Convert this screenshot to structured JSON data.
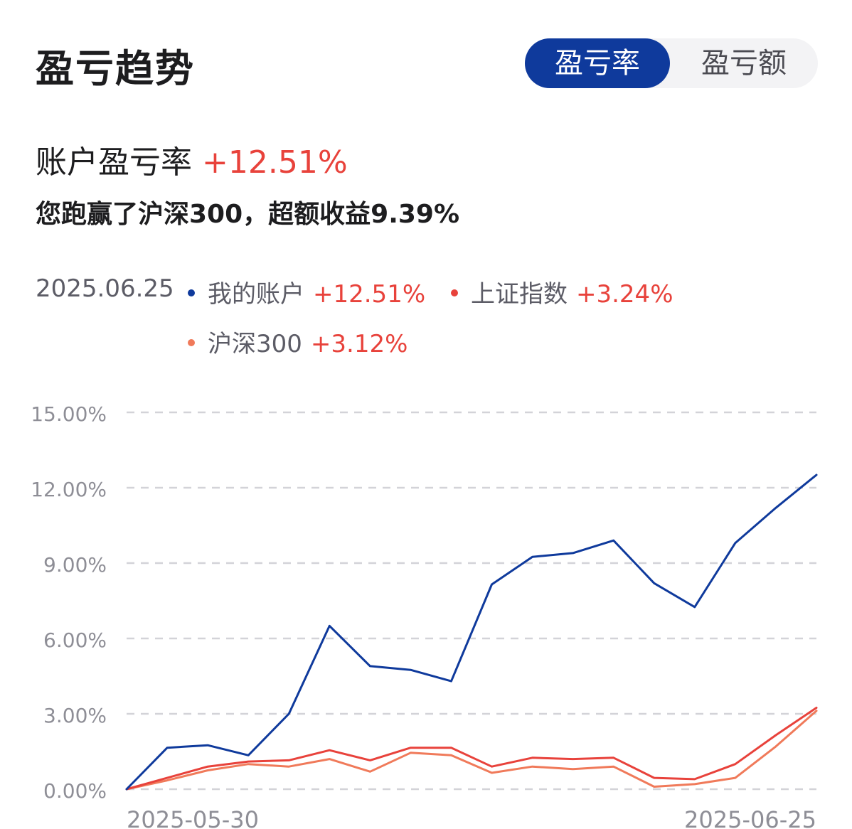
{
  "header": {
    "title": "盈亏趋势",
    "tabs": [
      {
        "label": "盈亏率",
        "active": true
      },
      {
        "label": "盈亏额",
        "active": false
      }
    ]
  },
  "summary": {
    "rate_label": "账户盈亏率",
    "rate_value": "+12.51%",
    "note": "您跑赢了沪深300，超额收益9.39%"
  },
  "legend": {
    "date": "2025.06.25",
    "items": [
      {
        "name": "我的账户",
        "value": "+12.51%",
        "color": "#0f3a9c"
      },
      {
        "name": "上证指数",
        "value": "+3.24%",
        "color": "#e8423b"
      },
      {
        "name": "沪深300",
        "value": "+3.12%",
        "color": "#f07a5a"
      }
    ]
  },
  "colors": {
    "accent": "#0f3a9c",
    "positive": "#e8423b",
    "grid": "#d3d3d8",
    "axis_text": "#8e8e96"
  },
  "chart_data": {
    "type": "line",
    "x_ticks": [
      "2025-05-30",
      "2025-06-25"
    ],
    "y_ticks": [
      "15.00%",
      "12.00%",
      "9.00%",
      "6.00%",
      "3.00%",
      "0.00%"
    ],
    "ylim": [
      0,
      15
    ],
    "grid": true,
    "series": [
      {
        "name": "我的账户",
        "color": "#0f3a9c",
        "values": [
          0,
          1.65,
          1.75,
          1.35,
          3.0,
          6.5,
          4.9,
          4.75,
          4.3,
          8.15,
          9.25,
          9.4,
          9.9,
          8.2,
          7.25,
          9.8,
          11.2,
          12.51
        ]
      },
      {
        "name": "上证指数",
        "color": "#e8423b",
        "values": [
          0,
          0.45,
          0.9,
          1.1,
          1.15,
          1.55,
          1.15,
          1.65,
          1.65,
          0.9,
          1.25,
          1.2,
          1.25,
          0.45,
          0.4,
          1.0,
          2.15,
          3.24
        ]
      },
      {
        "name": "沪深300",
        "color": "#f07a5a",
        "values": [
          0,
          0.35,
          0.75,
          1.0,
          0.9,
          1.2,
          0.7,
          1.45,
          1.35,
          0.65,
          0.9,
          0.8,
          0.9,
          0.1,
          0.2,
          0.45,
          1.7,
          3.12
        ]
      }
    ]
  }
}
